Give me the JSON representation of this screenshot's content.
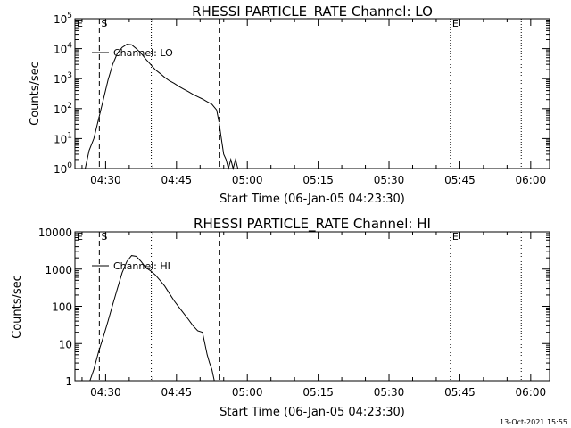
{
  "footer": {
    "timestamp": "13-Oct-2021 15:55"
  },
  "chart_data": [
    {
      "type": "line",
      "title": "RHESSI PARTICLE_RATE Channel: LO",
      "xlabel": "Start Time (06-Jan-05 04:23:30)",
      "ylabel": "Counts/sec",
      "yscale": "log",
      "xlim": [
        "04:23:30",
        "06:04:00"
      ],
      "ylim": [
        1,
        100000
      ],
      "x_ticks": [
        "04:30",
        "04:45",
        "05:00",
        "05:15",
        "05:30",
        "05:45",
        "06:00"
      ],
      "y_ticks": [
        "10^0",
        "10^1",
        "10^2",
        "10^3",
        "10^4",
        "10^5"
      ],
      "y_tick_bases": [
        "10",
        "10",
        "10",
        "10",
        "10",
        "10"
      ],
      "y_tick_exps": [
        "0",
        "1",
        "2",
        "3",
        "4",
        "5"
      ],
      "legend": "Channel: LO",
      "markers": [
        {
          "label": "E",
          "time": "04:23:30",
          "style": "dashed"
        },
        {
          "label": "S",
          "time": "04:28:40",
          "style": "dashed"
        },
        {
          "label": "",
          "time": "04:39:40",
          "style": "dotted"
        },
        {
          "label": "",
          "time": "04:54:10",
          "style": "dashed"
        },
        {
          "label": "E",
          "time": "05:43:00",
          "style": "dotted"
        },
        {
          "label": "",
          "time": "05:58:00",
          "style": "dotted"
        }
      ],
      "series": [
        {
          "x": [
            "04:25:40",
            "04:26:30",
            "04:27:30",
            "04:28:30",
            "04:29:30",
            "04:30:30",
            "04:31:30",
            "04:32:30",
            "04:33:30",
            "04:34:30",
            "04:35:30",
            "04:36:30",
            "04:37:30",
            "04:38:30",
            "04:39:30",
            "04:40:30",
            "04:41:30",
            "04:42:30",
            "04:43:30",
            "04:44:30",
            "04:45:30",
            "04:46:30",
            "04:47:30",
            "04:48:30",
            "04:49:30",
            "04:50:30",
            "04:51:30",
            "04:52:30",
            "04:53:30",
            "04:54:00",
            "04:54:30",
            "04:55:00",
            "04:55:30",
            "04:56:00",
            "04:56:30",
            "04:57:00",
            "04:57:30",
            "04:58:00"
          ],
          "y": [
            1,
            4,
            10,
            45,
            200,
            900,
            3000,
            7000,
            11000,
            14000,
            13500,
            10000,
            7000,
            4500,
            3000,
            2000,
            1500,
            1100,
            850,
            700,
            550,
            450,
            370,
            300,
            250,
            210,
            170,
            140,
            90,
            35,
            10,
            3,
            2,
            1,
            2,
            1,
            2,
            1
          ]
        }
      ]
    },
    {
      "type": "line",
      "title": "RHESSI PARTICLE_RATE Channel: HI",
      "xlabel": "Start Time (06-Jan-05 04:23:30)",
      "ylabel": "Counts/sec",
      "yscale": "log",
      "xlim": [
        "04:23:30",
        "06:04:00"
      ],
      "ylim": [
        1,
        10000
      ],
      "x_ticks": [
        "04:30",
        "04:45",
        "05:00",
        "05:15",
        "05:30",
        "05:45",
        "06:00"
      ],
      "y_ticks": [
        "1",
        "10",
        "100",
        "1000",
        "10000"
      ],
      "legend": "Channel: HI",
      "markers": [
        {
          "label": "E",
          "time": "04:23:30",
          "style": "dashed"
        },
        {
          "label": "S",
          "time": "04:28:40",
          "style": "dashed"
        },
        {
          "label": "",
          "time": "04:39:40",
          "style": "dotted"
        },
        {
          "label": "",
          "time": "04:54:10",
          "style": "dashed"
        },
        {
          "label": "E",
          "time": "05:43:00",
          "style": "dotted"
        },
        {
          "label": "",
          "time": "05:58:00",
          "style": "dotted"
        }
      ],
      "series": [
        {
          "x": [
            "04:26:40",
            "04:27:30",
            "04:28:30",
            "04:29:30",
            "04:30:30",
            "04:31:30",
            "04:32:30",
            "04:33:30",
            "04:34:30",
            "04:35:30",
            "04:36:30",
            "04:37:30",
            "04:38:30",
            "04:39:30",
            "04:40:30",
            "04:41:30",
            "04:42:30",
            "04:43:30",
            "04:44:30",
            "04:45:30",
            "04:46:30",
            "04:47:30",
            "04:48:30",
            "04:49:30",
            "04:50:30",
            "04:51:00",
            "04:51:30",
            "04:52:00",
            "04:52:30",
            "04:53:00"
          ],
          "y": [
            1,
            2,
            6,
            15,
            40,
            110,
            300,
            800,
            1600,
            2300,
            2200,
            1600,
            1100,
            900,
            700,
            500,
            350,
            220,
            140,
            95,
            65,
            45,
            30,
            22,
            20,
            10,
            5,
            3,
            2,
            1
          ]
        }
      ]
    }
  ]
}
